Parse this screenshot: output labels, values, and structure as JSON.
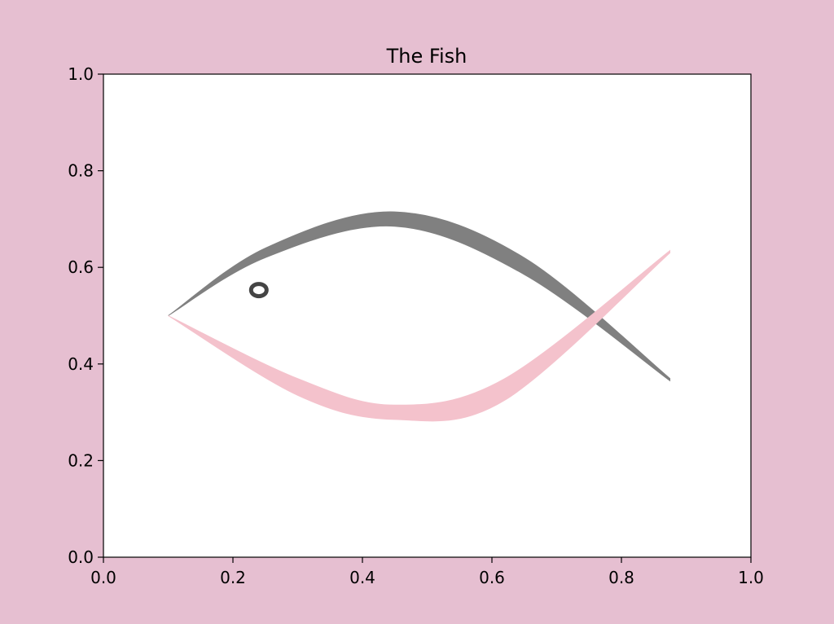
{
  "chart_data": {
    "type": "line",
    "title": "The Fish",
    "xlabel": "",
    "ylabel": "",
    "xlim": [
      0.0,
      1.0
    ],
    "ylim": [
      0.0,
      1.0
    ],
    "grid": false,
    "xticks": [
      "0.0",
      "0.2",
      "0.4",
      "0.6",
      "0.8",
      "1.0"
    ],
    "yticks": [
      "0.0",
      "0.2",
      "0.4",
      "0.6",
      "0.8",
      "1.0"
    ],
    "series": [
      {
        "color": "#808080",
        "upper": [
          [
            0.1,
            0.5
          ],
          [
            0.25,
            0.64
          ],
          [
            0.45,
            0.715
          ],
          [
            0.65,
            0.62
          ],
          [
            0.875,
            0.37
          ]
        ],
        "lower": [
          [
            0.1,
            0.5
          ],
          [
            0.25,
            0.62
          ],
          [
            0.45,
            0.685
          ],
          [
            0.65,
            0.585
          ],
          [
            0.875,
            0.365
          ]
        ]
      },
      {
        "color": "#f4c2cc",
        "upper": [
          [
            0.1,
            0.5
          ],
          [
            0.3,
            0.37
          ],
          [
            0.45,
            0.315
          ],
          [
            0.62,
            0.37
          ],
          [
            0.875,
            0.635
          ]
        ],
        "lower": [
          [
            0.1,
            0.5
          ],
          [
            0.3,
            0.335
          ],
          [
            0.45,
            0.285
          ],
          [
            0.62,
            0.325
          ],
          [
            0.875,
            0.63
          ]
        ]
      }
    ],
    "eye": {
      "x": 0.24,
      "y": 0.553,
      "color": "#444444"
    }
  },
  "colors": {
    "figure_background": "#e6bfd1",
    "axes_background": "#ffffff"
  }
}
